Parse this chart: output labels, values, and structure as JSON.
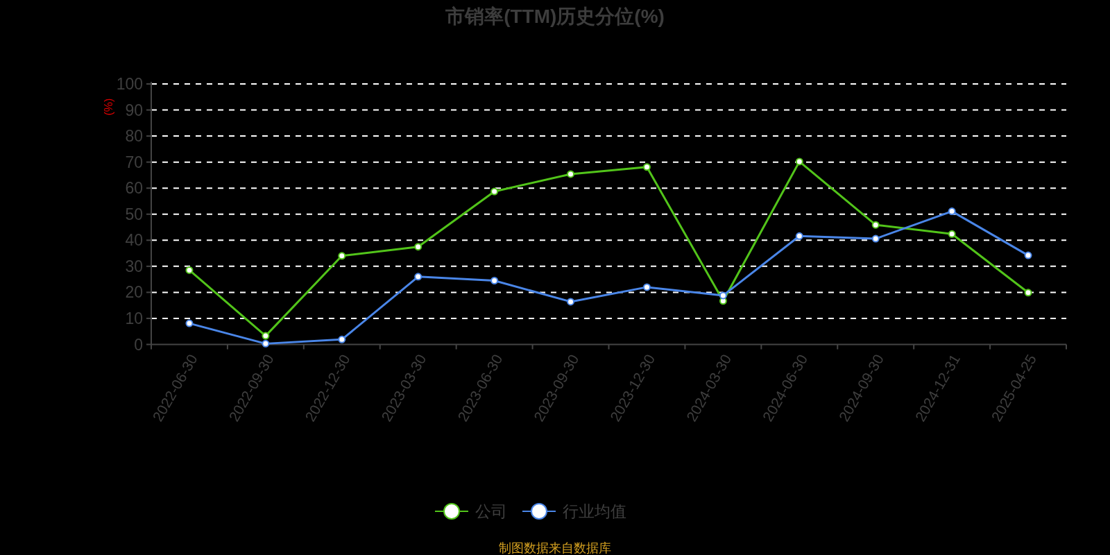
{
  "chart_data": {
    "type": "line",
    "title": "市销率(TTM)历史分位(%)",
    "ylabel": "(%)",
    "categories": [
      "2022-06-30",
      "2022-09-30",
      "2022-12-30",
      "2023-03-30",
      "2023-06-30",
      "2023-09-30",
      "2023-12-30",
      "2024-03-30",
      "2024-06-30",
      "2024-09-30",
      "2024-12-31",
      "2025-04-25"
    ],
    "series": [
      {
        "name": "公司",
        "color": "#52c41a",
        "values": [
          28.5,
          3.3,
          34.0,
          37.5,
          58.7,
          65.4,
          68.1,
          16.7,
          70.2,
          45.9,
          42.4,
          19.9
        ]
      },
      {
        "name": "行业均值",
        "color": "#4a86e8",
        "values": [
          8.1,
          0.3,
          1.9,
          26.0,
          24.5,
          16.4,
          22.0,
          18.8,
          41.6,
          40.6,
          51.1,
          34.2
        ]
      }
    ],
    "ylim": [
      0,
      100
    ],
    "yticks": [
      0,
      10,
      20,
      30,
      40,
      50,
      60,
      70,
      80,
      90,
      100
    ],
    "grid": "y",
    "legend": "bottom",
    "marker": "circle",
    "line_style": "solid",
    "annotations": [
      "制图数据来自数据库"
    ]
  }
}
